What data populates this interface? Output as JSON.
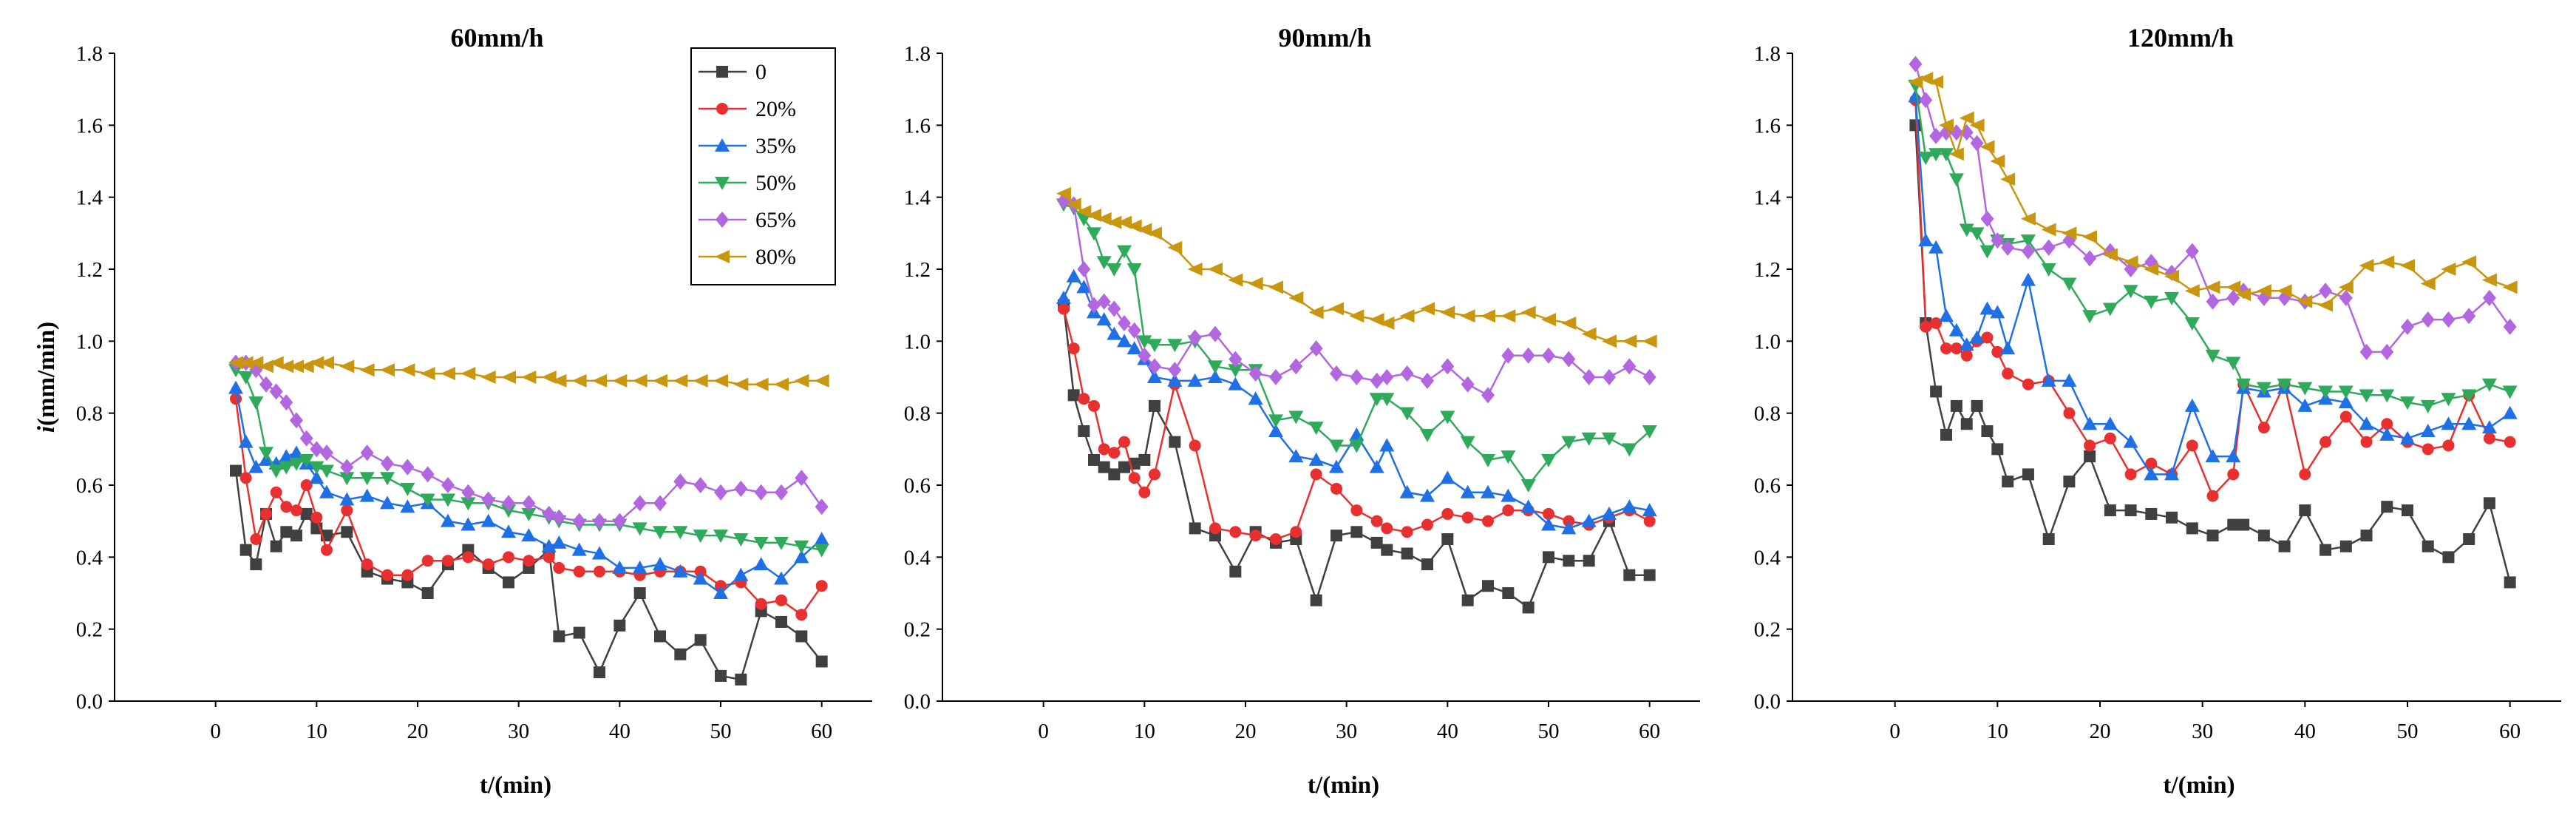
{
  "chart_data": [
    {
      "type": "line",
      "title": "60mm/h",
      "xlabel": "t/(min)",
      "ylabel": "i(mm/min)",
      "xlim": [
        -10,
        65
      ],
      "ylim": [
        0,
        1.8
      ],
      "xticks": [
        "0",
        "10",
        "20",
        "30",
        "40",
        "50",
        "60"
      ],
      "yticks": [
        "0.0",
        "0.2",
        "0.4",
        "0.6",
        "0.8",
        "1.0",
        "1.2",
        "1.4",
        "1.6",
        "1.8"
      ],
      "x": [
        2,
        3,
        4,
        5,
        6,
        7,
        8,
        9,
        10,
        11,
        13,
        15,
        17,
        19,
        21,
        23,
        25,
        27,
        29,
        31,
        33,
        34,
        36,
        38,
        40,
        42,
        44,
        46,
        48,
        50,
        52,
        54,
        56,
        58,
        60
      ],
      "series": [
        {
          "name": "0",
          "color": "#404040",
          "marker": "square",
          "values": [
            0.64,
            0.42,
            0.38,
            0.52,
            0.43,
            0.47,
            0.46,
            0.52,
            0.48,
            0.46,
            0.47,
            0.36,
            0.34,
            0.33,
            0.3,
            0.38,
            0.42,
            0.37,
            0.33,
            0.37,
            0.42,
            0.18,
            0.19,
            0.08,
            0.21,
            0.3,
            0.18,
            0.13,
            0.17,
            0.07,
            0.06,
            0.25,
            0.22,
            0.18,
            0.11
          ]
        },
        {
          "name": "20%",
          "color": "#e83030",
          "marker": "circle",
          "values": [
            0.84,
            0.62,
            0.45,
            0.52,
            0.58,
            0.54,
            0.53,
            0.6,
            0.51,
            0.42,
            0.53,
            0.38,
            0.35,
            0.35,
            0.39,
            0.39,
            0.4,
            0.38,
            0.4,
            0.39,
            0.4,
            0.37,
            0.36,
            0.36,
            0.36,
            0.35,
            0.36,
            0.36,
            0.36,
            0.32,
            0.33,
            0.27,
            0.28,
            0.24,
            0.32
          ]
        },
        {
          "name": "35%",
          "color": "#1f6fe5",
          "marker": "triangle-up",
          "values": [
            0.87,
            0.72,
            0.65,
            0.67,
            0.66,
            0.68,
            0.69,
            0.66,
            0.62,
            0.58,
            0.56,
            0.57,
            0.55,
            0.54,
            0.55,
            0.5,
            0.49,
            0.5,
            0.47,
            0.46,
            0.43,
            0.44,
            0.42,
            0.41,
            0.37,
            0.37,
            0.38,
            0.36,
            0.34,
            0.3,
            0.35,
            0.38,
            0.34,
            0.4,
            0.45
          ]
        },
        {
          "name": "50%",
          "color": "#2eaa5a",
          "marker": "triangle-down",
          "values": [
            0.92,
            0.9,
            0.83,
            0.69,
            0.64,
            0.65,
            0.66,
            0.67,
            0.65,
            0.64,
            0.62,
            0.62,
            0.62,
            0.59,
            0.56,
            0.56,
            0.55,
            0.55,
            0.53,
            0.52,
            0.51,
            0.5,
            0.49,
            0.49,
            0.49,
            0.48,
            0.47,
            0.47,
            0.46,
            0.46,
            0.45,
            0.44,
            0.44,
            0.43,
            0.42
          ]
        },
        {
          "name": "65%",
          "color": "#b266e0",
          "marker": "diamond",
          "values": [
            0.94,
            0.94,
            0.92,
            0.88,
            0.86,
            0.83,
            0.78,
            0.73,
            0.7,
            0.69,
            0.65,
            0.69,
            0.66,
            0.65,
            0.63,
            0.6,
            0.58,
            0.56,
            0.55,
            0.55,
            0.52,
            0.51,
            0.5,
            0.5,
            0.5,
            0.55,
            0.55,
            0.61,
            0.6,
            0.58,
            0.59,
            0.58,
            0.58,
            0.62,
            0.54
          ]
        },
        {
          "name": "80%",
          "color": "#c8960f",
          "marker": "triangle-left",
          "values": [
            0.94,
            0.94,
            0.94,
            0.93,
            0.94,
            0.93,
            0.93,
            0.93,
            0.94,
            0.94,
            0.93,
            0.92,
            0.92,
            0.92,
            0.91,
            0.91,
            0.91,
            0.9,
            0.9,
            0.9,
            0.9,
            0.89,
            0.89,
            0.89,
            0.89,
            0.89,
            0.89,
            0.89,
            0.89,
            0.89,
            0.88,
            0.88,
            0.88,
            0.89,
            0.89
          ]
        }
      ]
    },
    {
      "type": "line",
      "title": "90mm/h",
      "xlabel": "t/(min)",
      "ylabel": "",
      "xlim": [
        -10,
        65
      ],
      "ylim": [
        0,
        1.8
      ],
      "xticks": [
        "0",
        "10",
        "20",
        "30",
        "40",
        "50",
        "60"
      ],
      "yticks": [
        "0.0",
        "0.2",
        "0.4",
        "0.6",
        "0.8",
        "1.0",
        "1.2",
        "1.4",
        "1.6",
        "1.8"
      ],
      "x": [
        2,
        3,
        4,
        5,
        6,
        7,
        8,
        9,
        10,
        11,
        13,
        15,
        17,
        19,
        21,
        23,
        25,
        27,
        29,
        31,
        33,
        34,
        36,
        38,
        40,
        42,
        44,
        46,
        48,
        50,
        52,
        54,
        56,
        58,
        60
      ],
      "series": [
        {
          "name": "0",
          "color": "#404040",
          "marker": "square",
          "values": [
            1.1,
            0.85,
            0.75,
            0.67,
            0.65,
            0.63,
            0.65,
            0.66,
            0.67,
            0.82,
            0.72,
            0.48,
            0.46,
            0.36,
            0.47,
            0.44,
            0.45,
            0.28,
            0.46,
            0.47,
            0.44,
            0.42,
            0.41,
            0.38,
            0.45,
            0.28,
            0.32,
            0.3,
            0.26,
            0.4,
            0.39,
            0.39,
            0.5,
            0.35,
            0.35
          ]
        },
        {
          "name": "20%",
          "color": "#e83030",
          "marker": "circle",
          "values": [
            1.09,
            0.98,
            0.84,
            0.82,
            0.7,
            0.69,
            0.72,
            0.62,
            0.58,
            0.63,
            0.88,
            0.71,
            0.48,
            0.47,
            0.46,
            0.45,
            0.47,
            0.63,
            0.59,
            0.53,
            0.5,
            0.48,
            0.47,
            0.49,
            0.52,
            0.51,
            0.5,
            0.53,
            0.53,
            0.52,
            0.5,
            0.49,
            0.51,
            0.53,
            0.5
          ]
        },
        {
          "name": "35%",
          "color": "#1f6fe5",
          "marker": "triangle-up",
          "values": [
            1.12,
            1.18,
            1.15,
            1.08,
            1.06,
            1.02,
            1.0,
            0.98,
            0.95,
            0.9,
            0.89,
            0.89,
            0.9,
            0.88,
            0.84,
            0.75,
            0.68,
            0.67,
            0.65,
            0.74,
            0.65,
            0.71,
            0.58,
            0.57,
            0.62,
            0.58,
            0.58,
            0.57,
            0.54,
            0.49,
            0.48,
            0.5,
            0.52,
            0.54,
            0.53
          ]
        },
        {
          "name": "50%",
          "color": "#2eaa5a",
          "marker": "triangle-down",
          "values": [
            1.38,
            1.37,
            1.34,
            1.3,
            1.22,
            1.2,
            1.25,
            1.2,
            1.0,
            0.99,
            0.99,
            1.0,
            0.93,
            0.92,
            0.92,
            0.78,
            0.79,
            0.76,
            0.71,
            0.71,
            0.84,
            0.84,
            0.8,
            0.74,
            0.79,
            0.72,
            0.67,
            0.68,
            0.6,
            0.67,
            0.72,
            0.73,
            0.73,
            0.7,
            0.75
          ]
        },
        {
          "name": "65%",
          "color": "#b266e0",
          "marker": "diamond",
          "values": [
            1.39,
            1.38,
            1.2,
            1.1,
            1.11,
            1.09,
            1.05,
            1.03,
            0.96,
            0.93,
            0.92,
            1.01,
            1.02,
            0.95,
            0.91,
            0.9,
            0.93,
            0.98,
            0.91,
            0.9,
            0.89,
            0.9,
            0.91,
            0.89,
            0.93,
            0.88,
            0.85,
            0.96,
            0.96,
            0.96,
            0.95,
            0.9,
            0.9,
            0.93,
            0.9
          ]
        },
        {
          "name": "80%",
          "color": "#c8960f",
          "marker": "triangle-left",
          "values": [
            1.41,
            1.38,
            1.36,
            1.35,
            1.34,
            1.33,
            1.33,
            1.32,
            1.31,
            1.3,
            1.26,
            1.2,
            1.2,
            1.17,
            1.16,
            1.15,
            1.12,
            1.08,
            1.09,
            1.07,
            1.06,
            1.05,
            1.07,
            1.09,
            1.08,
            1.07,
            1.07,
            1.07,
            1.08,
            1.06,
            1.05,
            1.02,
            1.0,
            1.0,
            1.0
          ]
        }
      ]
    },
    {
      "type": "line",
      "title": "120mm/h",
      "xlabel": "t/(min)",
      "ylabel": "",
      "xlim": [
        -10,
        65
      ],
      "ylim": [
        0,
        1.8
      ],
      "xticks": [
        "0",
        "10",
        "20",
        "30",
        "40",
        "50",
        "60"
      ],
      "yticks": [
        "0.0",
        "0.2",
        "0.4",
        "0.6",
        "0.8",
        "1.0",
        "1.2",
        "1.4",
        "1.6",
        "1.8"
      ],
      "x": [
        2,
        3,
        4,
        5,
        6,
        7,
        8,
        9,
        10,
        11,
        13,
        15,
        17,
        19,
        21,
        23,
        25,
        27,
        29,
        31,
        33,
        34,
        36,
        38,
        40,
        42,
        44,
        46,
        48,
        50,
        52,
        54,
        56,
        58,
        60
      ],
      "series": [
        {
          "name": "0",
          "color": "#404040",
          "marker": "square",
          "values": [
            1.6,
            1.05,
            0.86,
            0.74,
            0.82,
            0.77,
            0.82,
            0.75,
            0.7,
            0.61,
            0.63,
            0.45,
            0.61,
            0.68,
            0.53,
            0.53,
            0.52,
            0.51,
            0.48,
            0.46,
            0.49,
            0.49,
            0.46,
            0.43,
            0.53,
            0.42,
            0.43,
            0.46,
            0.54,
            0.53,
            0.43,
            0.4,
            0.45,
            0.55,
            0.33
          ]
        },
        {
          "name": "20%",
          "color": "#e83030",
          "marker": "circle",
          "values": [
            1.67,
            1.04,
            1.05,
            0.98,
            0.98,
            0.96,
            1.0,
            1.01,
            0.97,
            0.91,
            0.88,
            0.89,
            0.8,
            0.71,
            0.73,
            0.63,
            0.66,
            0.63,
            0.71,
            0.57,
            0.63,
            0.88,
            0.76,
            0.88,
            0.63,
            0.72,
            0.79,
            0.72,
            0.77,
            0.72,
            0.7,
            0.71,
            0.85,
            0.73,
            0.72
          ]
        },
        {
          "name": "35%",
          "color": "#1f6fe5",
          "marker": "triangle-up",
          "values": [
            1.68,
            1.28,
            1.26,
            1.07,
            1.03,
            0.99,
            1.01,
            1.09,
            1.08,
            0.98,
            1.17,
            0.89,
            0.89,
            0.77,
            0.77,
            0.72,
            0.63,
            0.63,
            0.82,
            0.68,
            0.68,
            0.87,
            0.86,
            0.87,
            0.82,
            0.84,
            0.83,
            0.77,
            0.74,
            0.73,
            0.75,
            0.77,
            0.77,
            0.76,
            0.8
          ]
        },
        {
          "name": "50%",
          "color": "#2eaa5a",
          "marker": "triangle-down",
          "values": [
            1.71,
            1.51,
            1.52,
            1.52,
            1.45,
            1.31,
            1.3,
            1.25,
            1.28,
            1.27,
            1.28,
            1.2,
            1.16,
            1.07,
            1.09,
            1.14,
            1.11,
            1.12,
            1.05,
            0.96,
            0.94,
            0.88,
            0.87,
            0.88,
            0.87,
            0.86,
            0.86,
            0.85,
            0.85,
            0.83,
            0.82,
            0.84,
            0.85,
            0.88,
            0.86
          ]
        },
        {
          "name": "65%",
          "color": "#b266e0",
          "marker": "diamond",
          "values": [
            1.77,
            1.67,
            1.57,
            1.58,
            1.58,
            1.58,
            1.55,
            1.34,
            1.28,
            1.26,
            1.25,
            1.26,
            1.28,
            1.23,
            1.25,
            1.2,
            1.22,
            1.19,
            1.25,
            1.11,
            1.12,
            1.14,
            1.12,
            1.12,
            1.11,
            1.14,
            1.12,
            0.97,
            0.97,
            1.04,
            1.06,
            1.06,
            1.07,
            1.12,
            1.04
          ]
        },
        {
          "name": "80%",
          "color": "#c8960f",
          "marker": "triangle-left",
          "values": [
            1.72,
            1.73,
            1.72,
            1.6,
            1.52,
            1.62,
            1.6,
            1.54,
            1.5,
            1.45,
            1.34,
            1.31,
            1.3,
            1.29,
            1.24,
            1.22,
            1.2,
            1.18,
            1.14,
            1.15,
            1.15,
            1.13,
            1.14,
            1.14,
            1.11,
            1.1,
            1.15,
            1.21,
            1.22,
            1.21,
            1.16,
            1.2,
            1.22,
            1.17,
            1.15
          ]
        }
      ]
    }
  ],
  "legend": {
    "placement": "top-right of first panel",
    "entries": [
      "0",
      "20%",
      "35%",
      "50%",
      "65%",
      "80%"
    ]
  }
}
